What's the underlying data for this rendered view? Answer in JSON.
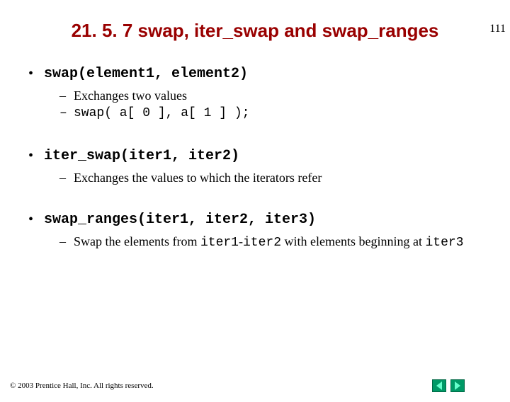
{
  "page_number": "111",
  "title": "21. 5. 7 swap, iter_swap and swap_ranges",
  "sections": [
    {
      "heading": "swap(element1, element2)",
      "items": [
        {
          "text": "Exchanges two values",
          "mono": false
        },
        {
          "text": "swap( a[ 0 ], a[ 1 ] );",
          "mono": true
        }
      ]
    },
    {
      "heading": "iter_swap(iter1, iter2)",
      "items": [
        {
          "text": "Exchanges the values to which the iterators refer",
          "mono": false
        }
      ]
    },
    {
      "heading": "swap_ranges(iter1, iter2, iter3)",
      "items": [
        {
          "pre": "Swap the elements from ",
          "code1": "iter1",
          "mid1": "-",
          "code2": "iter2",
          "mid2": " with elements beginning at ",
          "code3": "iter3"
        }
      ]
    }
  ],
  "copyright": "© 2003 Prentice Hall, Inc.  All rights reserved."
}
